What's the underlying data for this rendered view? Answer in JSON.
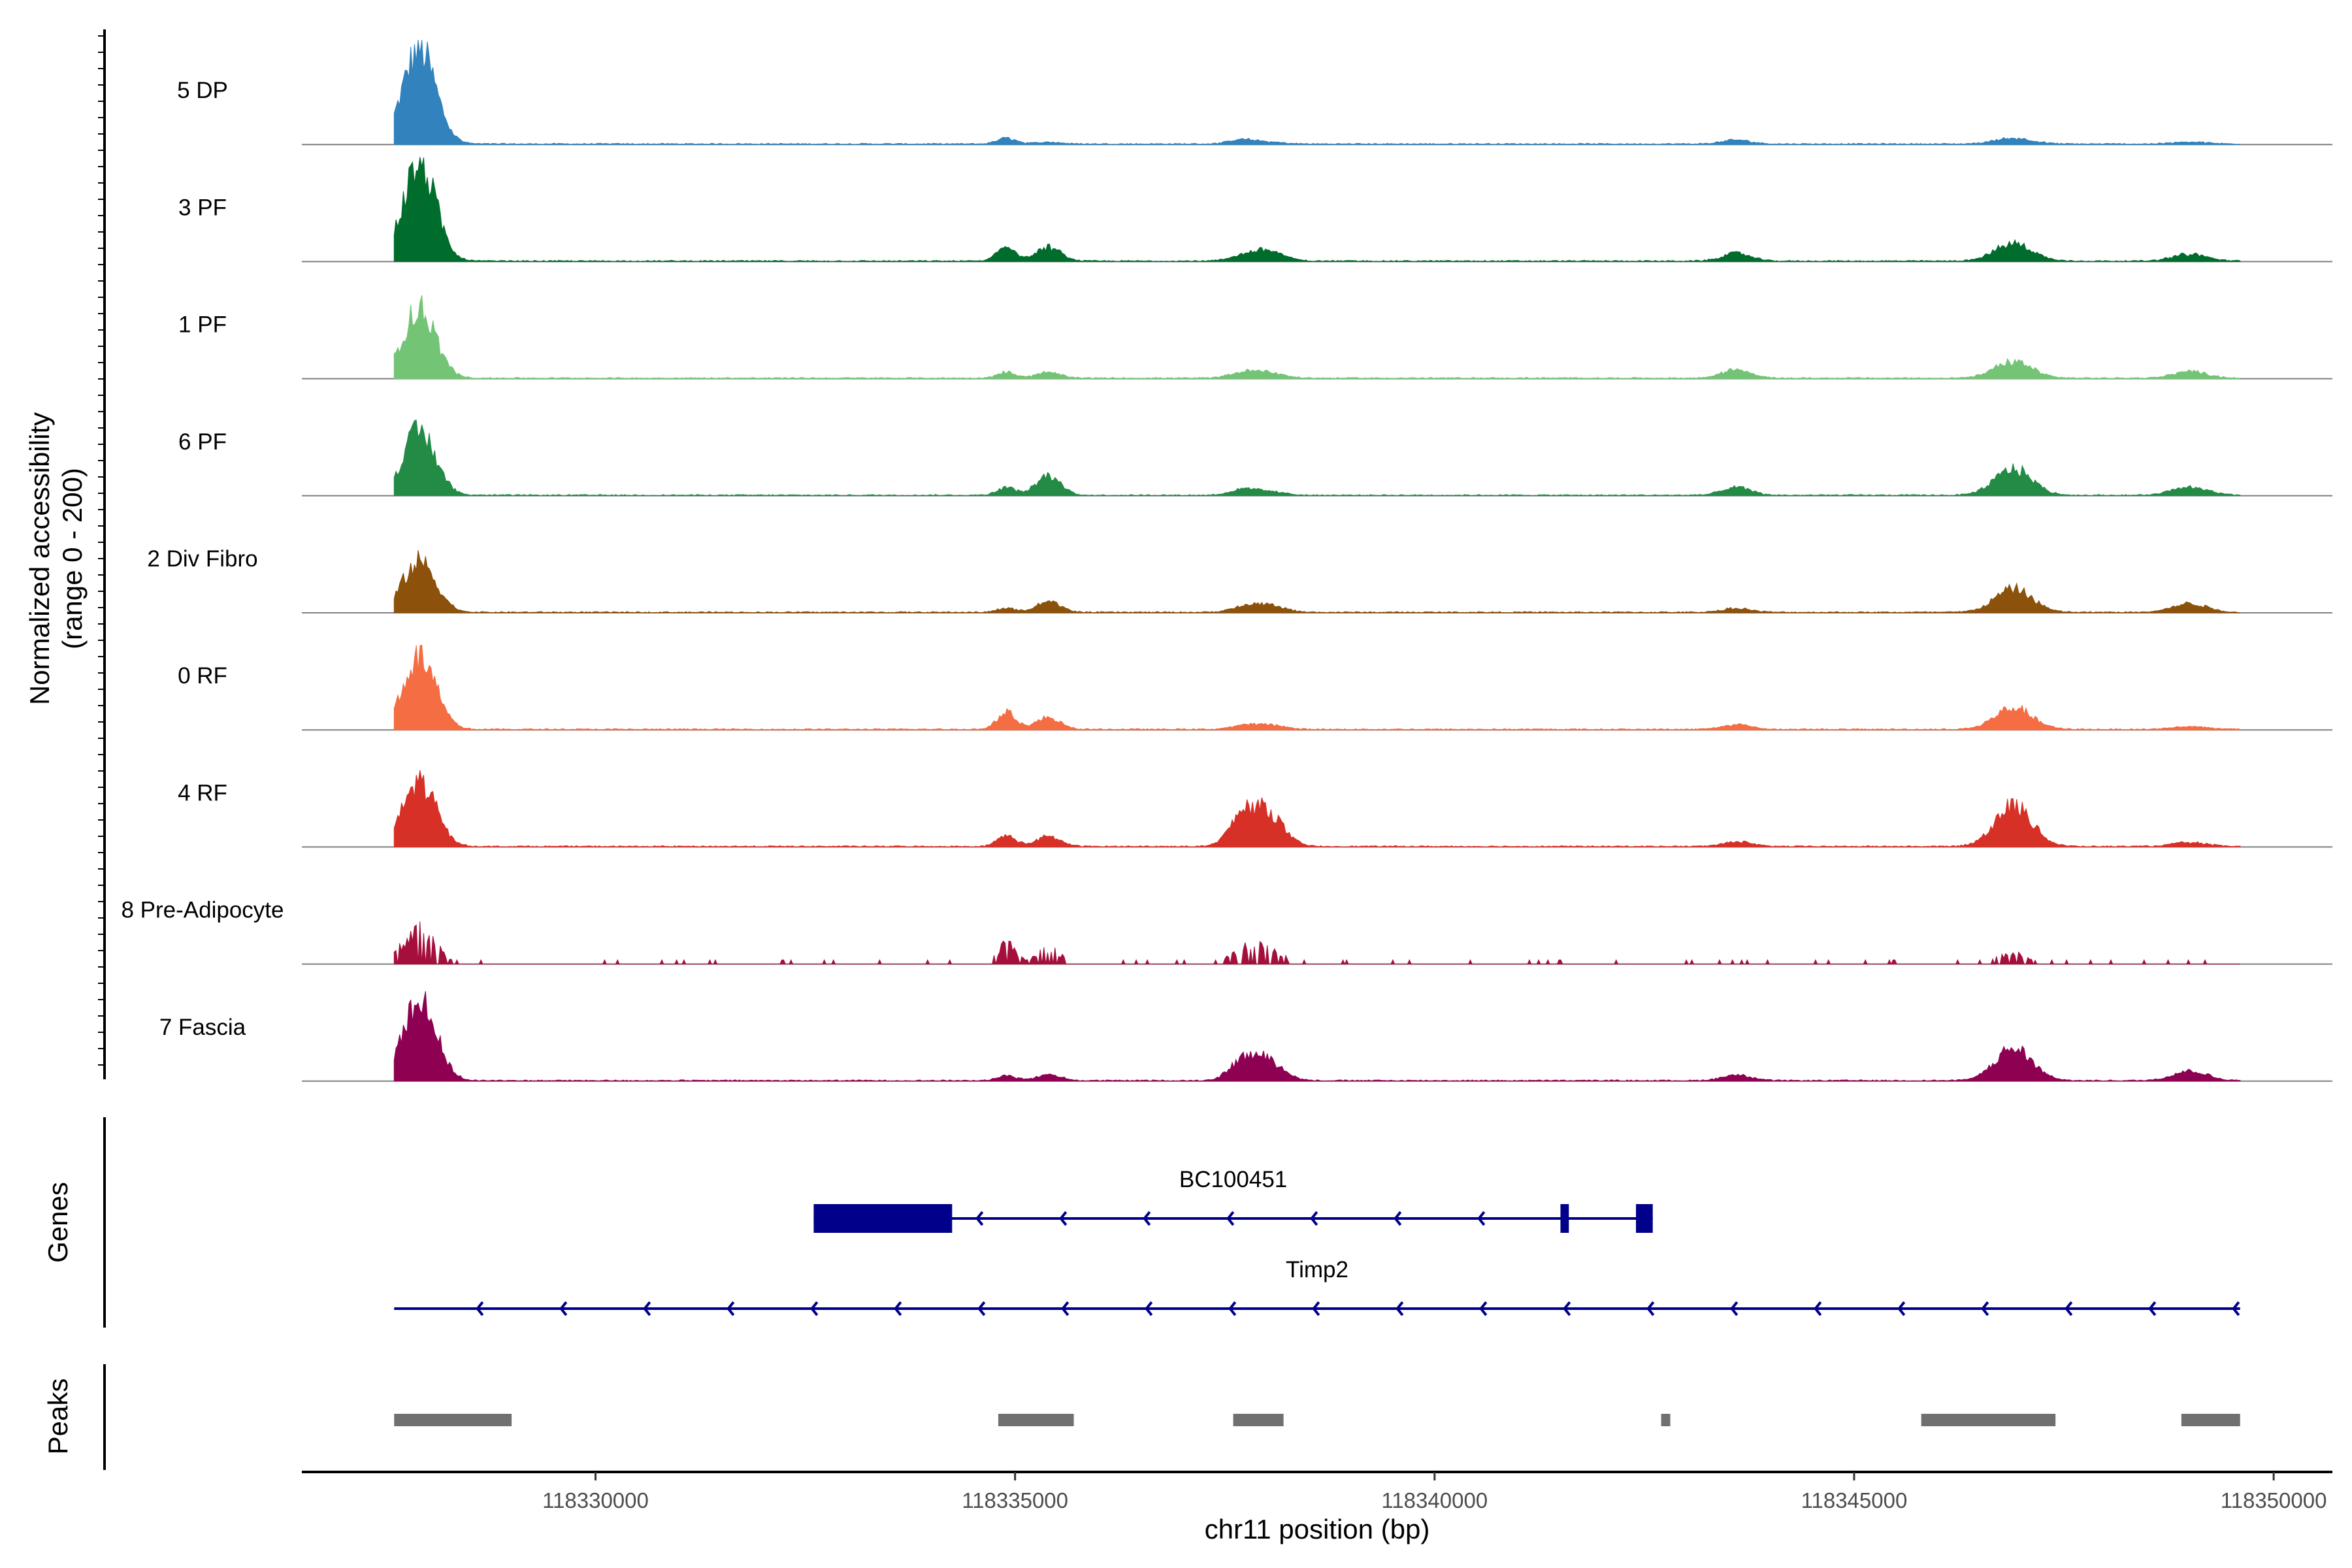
{
  "chart_data": {
    "type": "area",
    "title": "",
    "ylabel": "Normalized accessibility",
    "ylabel_range": "(range 0 - 200)",
    "xlabel": "chr11 position (bp)",
    "xlim": [
      118326500,
      118350700
    ],
    "region": [
      118327600,
      118349600
    ],
    "ylim": [
      0,
      200
    ],
    "x_ticks": [
      {
        "value": 118330000,
        "label": "118330000"
      },
      {
        "value": 118335000,
        "label": "118335000"
      },
      {
        "value": 118340000,
        "label": "118340000"
      },
      {
        "value": 118345000,
        "label": "118345000"
      },
      {
        "value": 118350000,
        "label": "118350000"
      }
    ],
    "peak_positions": [
      118327900,
      118334900,
      118335400,
      118337700,
      118338000,
      118343600,
      118346900,
      118349000
    ],
    "series": [
      {
        "name": "5 DP",
        "color": "#3182BD",
        "peaks": [
          0.97,
          0.06,
          0.02,
          0.04,
          0.02,
          0.04,
          0.06,
          0.02
        ]
      },
      {
        "name": "3 PF",
        "color": "#006D2C",
        "peaks": [
          1.0,
          0.15,
          0.14,
          0.04,
          0.11,
          0.08,
          0.18,
          0.07
        ]
      },
      {
        "name": "1 PF",
        "color": "#74C476",
        "peaks": [
          0.71,
          0.06,
          0.06,
          0.05,
          0.06,
          0.09,
          0.17,
          0.07
        ]
      },
      {
        "name": "6 PF",
        "color": "#238B45",
        "peaks": [
          0.65,
          0.08,
          0.2,
          0.05,
          0.04,
          0.08,
          0.27,
          0.09
        ]
      },
      {
        "name": "2 Div Fibro",
        "color": "#8C510A",
        "peaks": [
          0.52,
          0.04,
          0.11,
          0.04,
          0.08,
          0.04,
          0.24,
          0.09
        ]
      },
      {
        "name": "0 RF",
        "color": "#F46D43",
        "peaks": [
          0.74,
          0.18,
          0.12,
          0.03,
          0.05,
          0.05,
          0.22,
          0.03
        ]
      },
      {
        "name": "4 RF",
        "color": "#D73027",
        "peaks": [
          0.67,
          0.11,
          0.1,
          0.27,
          0.35,
          0.05,
          0.42,
          0.04
        ]
      },
      {
        "name": "8 Pre-Adipocyte",
        "color": "#A50F3B",
        "peaks": [
          0.35,
          0.2,
          0.16,
          0.12,
          0.16,
          0.05,
          0.1,
          0.05
        ]
      },
      {
        "name": "7 Fascia",
        "color": "#8E0152",
        "peaks": [
          0.85,
          0.05,
          0.06,
          0.18,
          0.21,
          0.06,
          0.33,
          0.1
        ]
      }
    ],
    "genes": [
      {
        "name": "Timp2",
        "strand": "-",
        "start": 118327600,
        "end": 118349600,
        "exons": []
      },
      {
        "name": "BC100451",
        "strand": "-",
        "start": 118332600,
        "end": 118342600,
        "exons": [
          {
            "start": 118332600,
            "end": 118334250
          },
          {
            "start": 118341500,
            "end": 118341600
          },
          {
            "start": 118342400,
            "end": 118342600
          }
        ]
      }
    ],
    "peaks_track": [
      {
        "start": 118327600,
        "end": 118329000
      },
      {
        "start": 118334800,
        "end": 118335700
      },
      {
        "start": 118337600,
        "end": 118338200
      },
      {
        "start": 118342700,
        "end": 118342800
      },
      {
        "start": 118345800,
        "end": 118347400
      },
      {
        "start": 118348900,
        "end": 118349600
      }
    ],
    "track_labels": {
      "genes": "Genes",
      "peaks": "Peaks"
    },
    "peak_color": "#707070",
    "gene_color": "#00008B"
  }
}
